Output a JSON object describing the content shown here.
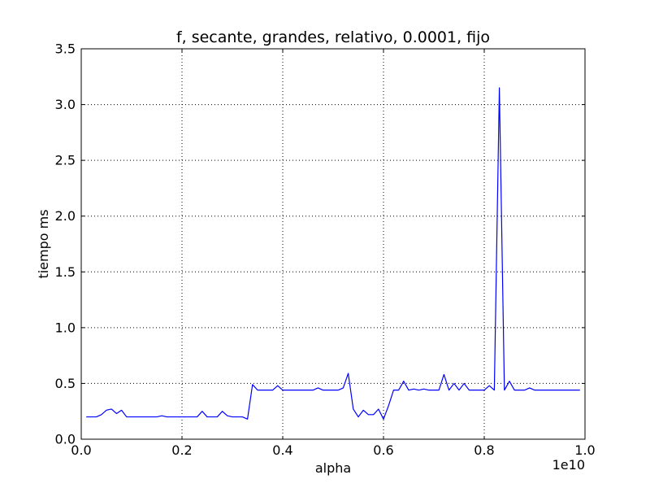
{
  "chart_data": {
    "type": "line",
    "title": "f, secante, grandes, relativo, 0.0001, fijo",
    "xlabel": "alpha",
    "ylabel": "tiempo ms",
    "x_offset_label": "1e10",
    "xlim": [
      0.0,
      1.0
    ],
    "ylim": [
      0.0,
      3.5
    ],
    "xticks": [
      0.0,
      0.2,
      0.4,
      0.6,
      0.8,
      1.0
    ],
    "xtick_labels": [
      "0.0",
      "0.2",
      "0.4",
      "0.6",
      "0.8",
      "1.0"
    ],
    "yticks": [
      0.0,
      0.5,
      1.0,
      1.5,
      2.0,
      2.5,
      3.0,
      3.5
    ],
    "ytick_labels": [
      "0.0",
      "0.5",
      "1.0",
      "1.5",
      "2.0",
      "2.5",
      "3.0",
      "3.5"
    ],
    "grid": true,
    "color": "#0000ff",
    "series": [
      {
        "x": [
          0.01,
          0.02,
          0.03,
          0.04,
          0.05,
          0.06,
          0.07,
          0.08,
          0.09,
          0.1,
          0.11,
          0.12,
          0.13,
          0.14,
          0.15,
          0.16,
          0.17,
          0.18,
          0.19,
          0.2,
          0.21,
          0.22,
          0.23,
          0.24,
          0.25,
          0.26,
          0.27,
          0.28,
          0.29,
          0.3,
          0.31,
          0.32,
          0.33,
          0.34,
          0.35,
          0.36,
          0.37,
          0.38,
          0.39,
          0.4,
          0.41,
          0.42,
          0.43,
          0.44,
          0.45,
          0.46,
          0.47,
          0.48,
          0.49,
          0.5,
          0.51,
          0.52,
          0.53,
          0.54,
          0.55,
          0.56,
          0.57,
          0.58,
          0.59,
          0.6,
          0.61,
          0.62,
          0.63,
          0.64,
          0.65,
          0.66,
          0.67,
          0.68,
          0.69,
          0.7,
          0.71,
          0.72,
          0.73,
          0.74,
          0.75,
          0.76,
          0.77,
          0.78,
          0.79,
          0.8,
          0.81,
          0.82,
          0.83,
          0.84,
          0.85,
          0.86,
          0.87,
          0.88,
          0.89,
          0.9,
          0.91,
          0.92,
          0.93,
          0.94,
          0.95,
          0.96,
          0.97,
          0.98,
          0.99
        ],
        "values": [
          0.2,
          0.2,
          0.2,
          0.22,
          0.26,
          0.27,
          0.23,
          0.26,
          0.2,
          0.2,
          0.2,
          0.2,
          0.2,
          0.2,
          0.2,
          0.21,
          0.2,
          0.2,
          0.2,
          0.2,
          0.2,
          0.2,
          0.2,
          0.25,
          0.2,
          0.2,
          0.2,
          0.25,
          0.21,
          0.2,
          0.2,
          0.2,
          0.18,
          0.49,
          0.44,
          0.44,
          0.44,
          0.44,
          0.48,
          0.44,
          0.44,
          0.44,
          0.44,
          0.44,
          0.44,
          0.44,
          0.46,
          0.44,
          0.44,
          0.44,
          0.44,
          0.46,
          0.59,
          0.27,
          0.2,
          0.26,
          0.22,
          0.22,
          0.27,
          0.18,
          0.3,
          0.44,
          0.44,
          0.52,
          0.44,
          0.45,
          0.44,
          0.45,
          0.44,
          0.44,
          0.44,
          0.58,
          0.44,
          0.5,
          0.44,
          0.5,
          0.44,
          0.44,
          0.44,
          0.44,
          0.48,
          0.44,
          3.15,
          0.44,
          0.52,
          0.44,
          0.44,
          0.44,
          0.46,
          0.44,
          0.44,
          0.44,
          0.44,
          0.44,
          0.44,
          0.44,
          0.44,
          0.44,
          0.44
        ]
      }
    ]
  }
}
